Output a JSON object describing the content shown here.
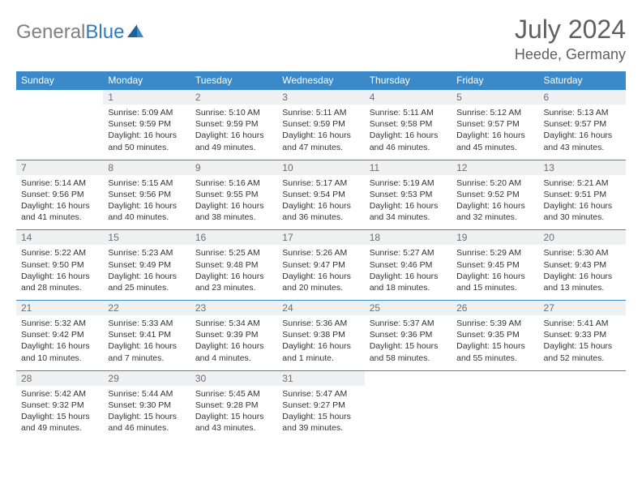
{
  "brand": {
    "part1": "General",
    "part2": "Blue"
  },
  "title": "July 2024",
  "location": "Heede, Germany",
  "colors": {
    "header_bg": "#3a8ac9",
    "header_text": "#ffffff",
    "daynum_bg": "#eef0f2",
    "daynum_text": "#6a6f73",
    "body_text": "#333333",
    "title_text": "#606060",
    "logo_gray": "#808080",
    "logo_blue": "#2f7bbf"
  },
  "dow": [
    "Sunday",
    "Monday",
    "Tuesday",
    "Wednesday",
    "Thursday",
    "Friday",
    "Saturday"
  ],
  "weeks": [
    {
      "nums": [
        "",
        "1",
        "2",
        "3",
        "4",
        "5",
        "6"
      ],
      "cells": [
        null,
        {
          "sr": "Sunrise: 5:09 AM",
          "ss": "Sunset: 9:59 PM",
          "dl": "Daylight: 16 hours and 50 minutes."
        },
        {
          "sr": "Sunrise: 5:10 AM",
          "ss": "Sunset: 9:59 PM",
          "dl": "Daylight: 16 hours and 49 minutes."
        },
        {
          "sr": "Sunrise: 5:11 AM",
          "ss": "Sunset: 9:59 PM",
          "dl": "Daylight: 16 hours and 47 minutes."
        },
        {
          "sr": "Sunrise: 5:11 AM",
          "ss": "Sunset: 9:58 PM",
          "dl": "Daylight: 16 hours and 46 minutes."
        },
        {
          "sr": "Sunrise: 5:12 AM",
          "ss": "Sunset: 9:57 PM",
          "dl": "Daylight: 16 hours and 45 minutes."
        },
        {
          "sr": "Sunrise: 5:13 AM",
          "ss": "Sunset: 9:57 PM",
          "dl": "Daylight: 16 hours and 43 minutes."
        }
      ]
    },
    {
      "nums": [
        "7",
        "8",
        "9",
        "10",
        "11",
        "12",
        "13"
      ],
      "cells": [
        {
          "sr": "Sunrise: 5:14 AM",
          "ss": "Sunset: 9:56 PM",
          "dl": "Daylight: 16 hours and 41 minutes."
        },
        {
          "sr": "Sunrise: 5:15 AM",
          "ss": "Sunset: 9:56 PM",
          "dl": "Daylight: 16 hours and 40 minutes."
        },
        {
          "sr": "Sunrise: 5:16 AM",
          "ss": "Sunset: 9:55 PM",
          "dl": "Daylight: 16 hours and 38 minutes."
        },
        {
          "sr": "Sunrise: 5:17 AM",
          "ss": "Sunset: 9:54 PM",
          "dl": "Daylight: 16 hours and 36 minutes."
        },
        {
          "sr": "Sunrise: 5:19 AM",
          "ss": "Sunset: 9:53 PM",
          "dl": "Daylight: 16 hours and 34 minutes."
        },
        {
          "sr": "Sunrise: 5:20 AM",
          "ss": "Sunset: 9:52 PM",
          "dl": "Daylight: 16 hours and 32 minutes."
        },
        {
          "sr": "Sunrise: 5:21 AM",
          "ss": "Sunset: 9:51 PM",
          "dl": "Daylight: 16 hours and 30 minutes."
        }
      ]
    },
    {
      "nums": [
        "14",
        "15",
        "16",
        "17",
        "18",
        "19",
        "20"
      ],
      "cells": [
        {
          "sr": "Sunrise: 5:22 AM",
          "ss": "Sunset: 9:50 PM",
          "dl": "Daylight: 16 hours and 28 minutes."
        },
        {
          "sr": "Sunrise: 5:23 AM",
          "ss": "Sunset: 9:49 PM",
          "dl": "Daylight: 16 hours and 25 minutes."
        },
        {
          "sr": "Sunrise: 5:25 AM",
          "ss": "Sunset: 9:48 PM",
          "dl": "Daylight: 16 hours and 23 minutes."
        },
        {
          "sr": "Sunrise: 5:26 AM",
          "ss": "Sunset: 9:47 PM",
          "dl": "Daylight: 16 hours and 20 minutes."
        },
        {
          "sr": "Sunrise: 5:27 AM",
          "ss": "Sunset: 9:46 PM",
          "dl": "Daylight: 16 hours and 18 minutes."
        },
        {
          "sr": "Sunrise: 5:29 AM",
          "ss": "Sunset: 9:45 PM",
          "dl": "Daylight: 16 hours and 15 minutes."
        },
        {
          "sr": "Sunrise: 5:30 AM",
          "ss": "Sunset: 9:43 PM",
          "dl": "Daylight: 16 hours and 13 minutes."
        }
      ]
    },
    {
      "nums": [
        "21",
        "22",
        "23",
        "24",
        "25",
        "26",
        "27"
      ],
      "cells": [
        {
          "sr": "Sunrise: 5:32 AM",
          "ss": "Sunset: 9:42 PM",
          "dl": "Daylight: 16 hours and 10 minutes."
        },
        {
          "sr": "Sunrise: 5:33 AM",
          "ss": "Sunset: 9:41 PM",
          "dl": "Daylight: 16 hours and 7 minutes."
        },
        {
          "sr": "Sunrise: 5:34 AM",
          "ss": "Sunset: 9:39 PM",
          "dl": "Daylight: 16 hours and 4 minutes."
        },
        {
          "sr": "Sunrise: 5:36 AM",
          "ss": "Sunset: 9:38 PM",
          "dl": "Daylight: 16 hours and 1 minute."
        },
        {
          "sr": "Sunrise: 5:37 AM",
          "ss": "Sunset: 9:36 PM",
          "dl": "Daylight: 15 hours and 58 minutes."
        },
        {
          "sr": "Sunrise: 5:39 AM",
          "ss": "Sunset: 9:35 PM",
          "dl": "Daylight: 15 hours and 55 minutes."
        },
        {
          "sr": "Sunrise: 5:41 AM",
          "ss": "Sunset: 9:33 PM",
          "dl": "Daylight: 15 hours and 52 minutes."
        }
      ]
    },
    {
      "nums": [
        "28",
        "29",
        "30",
        "31",
        "",
        "",
        ""
      ],
      "cells": [
        {
          "sr": "Sunrise: 5:42 AM",
          "ss": "Sunset: 9:32 PM",
          "dl": "Daylight: 15 hours and 49 minutes."
        },
        {
          "sr": "Sunrise: 5:44 AM",
          "ss": "Sunset: 9:30 PM",
          "dl": "Daylight: 15 hours and 46 minutes."
        },
        {
          "sr": "Sunrise: 5:45 AM",
          "ss": "Sunset: 9:28 PM",
          "dl": "Daylight: 15 hours and 43 minutes."
        },
        {
          "sr": "Sunrise: 5:47 AM",
          "ss": "Sunset: 9:27 PM",
          "dl": "Daylight: 15 hours and 39 minutes."
        },
        null,
        null,
        null
      ]
    }
  ]
}
